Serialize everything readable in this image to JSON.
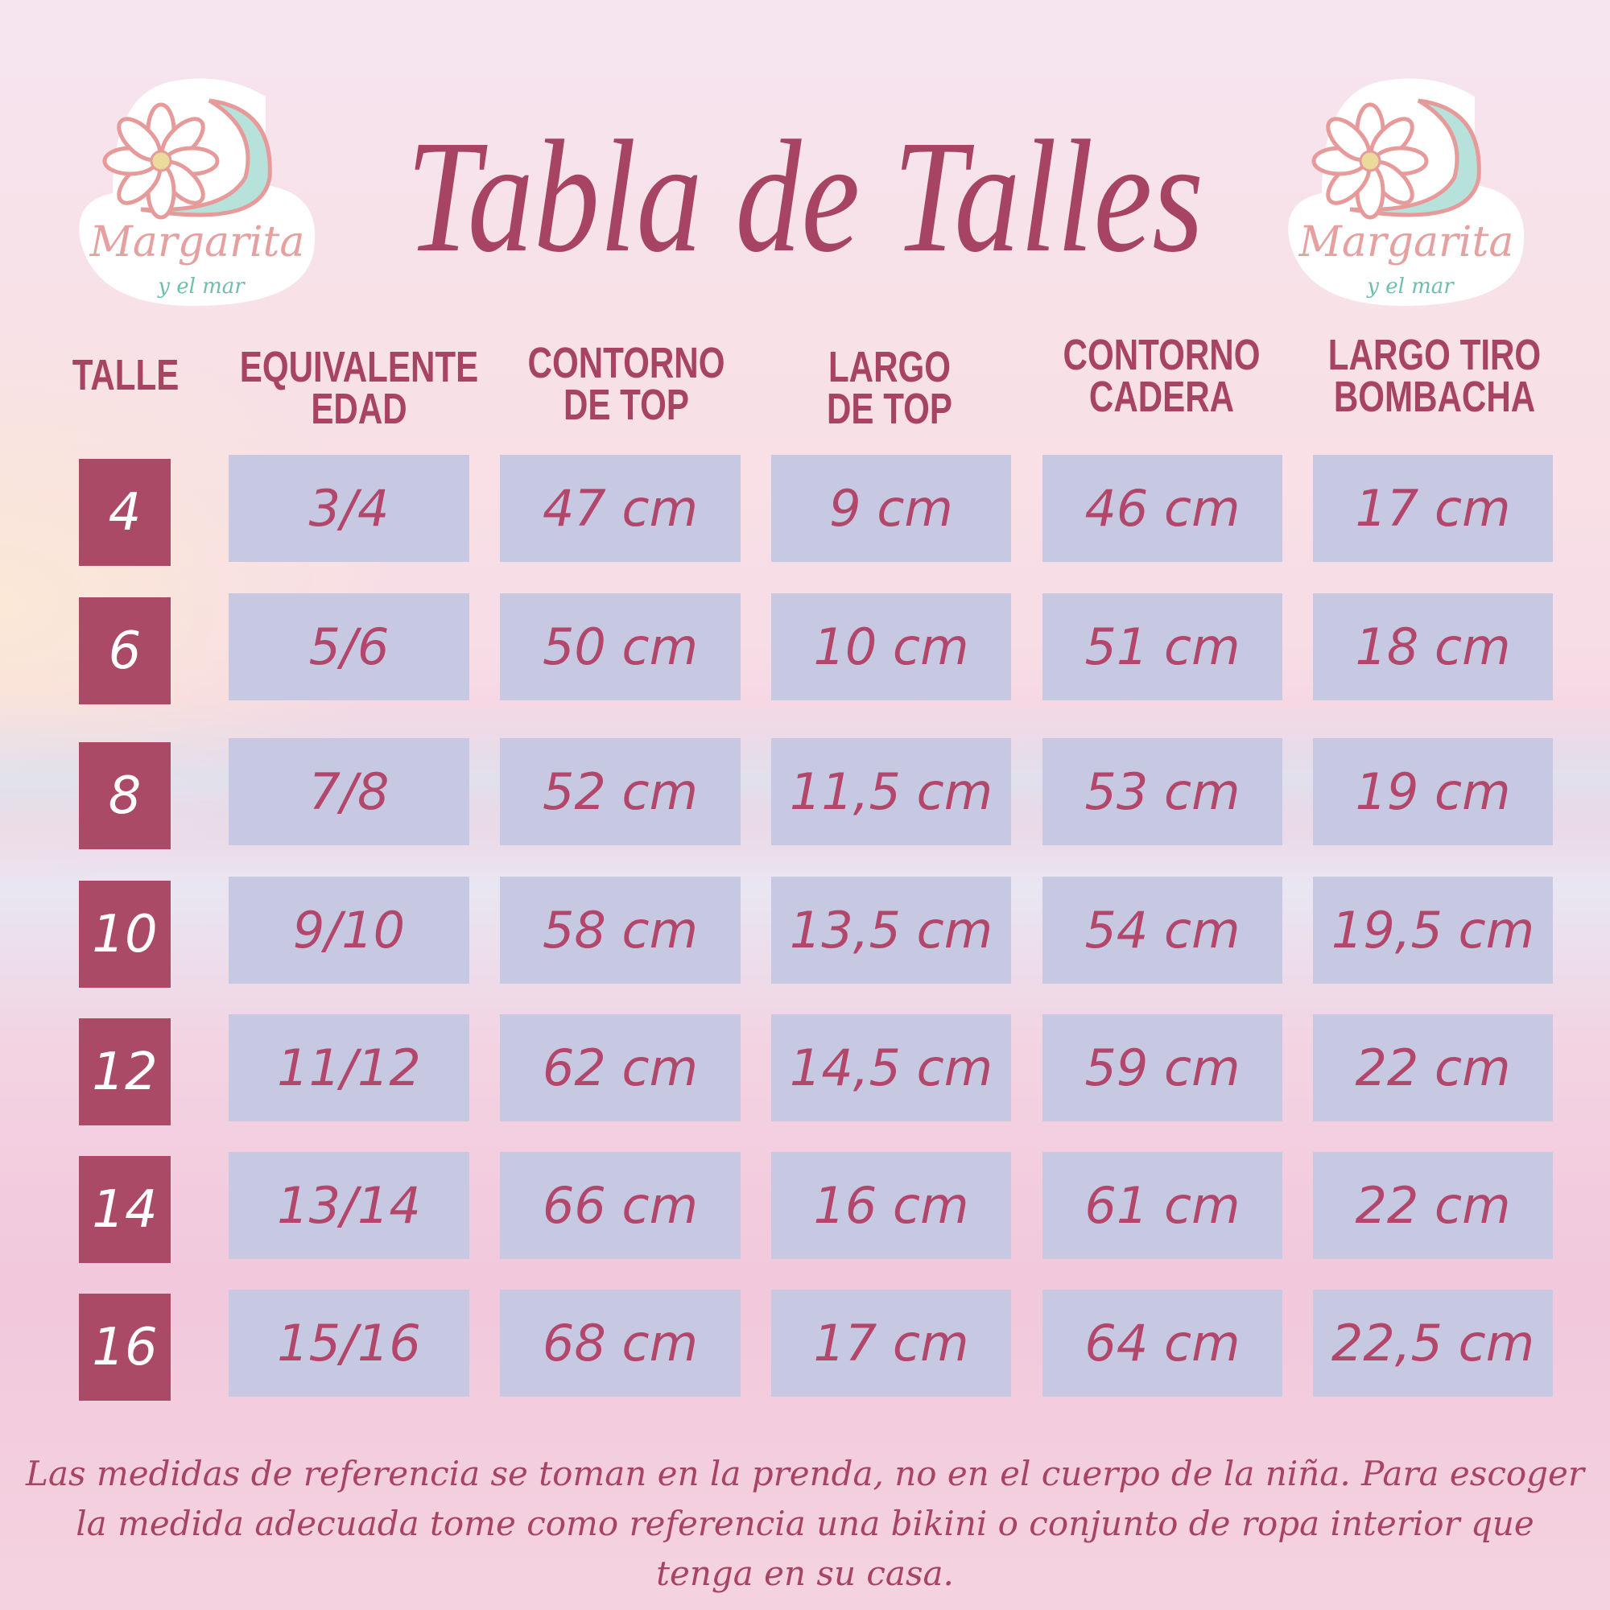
{
  "title": "Tabla de Talles",
  "logo": {
    "name": "Margarita",
    "tagline": "y el mar"
  },
  "colors": {
    "accent": "#ab4a66",
    "cell": "#c6c9e1",
    "text": "#b2476b"
  },
  "headers": [
    "TALLE",
    "EQUIVALENTE\nEDAD",
    "CONTORNO\nDE TOP",
    "LARGO\nDE TOP",
    "CONTORNO\nCADERA",
    "LARGO TIRO\nBOMBACHA"
  ],
  "rows": [
    {
      "talle": "4",
      "edad": "3/4",
      "contorno_top": "47 cm",
      "largo_top": "9 cm",
      "cadera": "46 cm",
      "tiro": "17 cm"
    },
    {
      "talle": "6",
      "edad": "5/6",
      "contorno_top": "50 cm",
      "largo_top": "10 cm",
      "cadera": "51 cm",
      "tiro": "18 cm"
    },
    {
      "talle": "8",
      "edad": "7/8",
      "contorno_top": "52 cm",
      "largo_top": "11,5 cm",
      "cadera": "53 cm",
      "tiro": "19 cm"
    },
    {
      "talle": "10",
      "edad": "9/10",
      "contorno_top": "58 cm",
      "largo_top": "13,5 cm",
      "cadera": "54 cm",
      "tiro": "19,5 cm"
    },
    {
      "talle": "12",
      "edad": "11/12",
      "contorno_top": "62 cm",
      "largo_top": "14,5 cm",
      "cadera": "59 cm",
      "tiro": "22 cm"
    },
    {
      "talle": "14",
      "edad": "13/14",
      "contorno_top": "66 cm",
      "largo_top": "16 cm",
      "cadera": "61 cm",
      "tiro": "22 cm"
    },
    {
      "talle": "16",
      "edad": "15/16",
      "contorno_top": "68 cm",
      "largo_top": "17 cm",
      "cadera": "64 cm",
      "tiro": "22,5 cm"
    }
  ],
  "footer": "Las medidas de referencia se toman en la prenda, no en el cuerpo de la niña. Para escoger la medida adecuada tome como referencia una bikini o conjunto de ropa interior que tenga en su casa."
}
